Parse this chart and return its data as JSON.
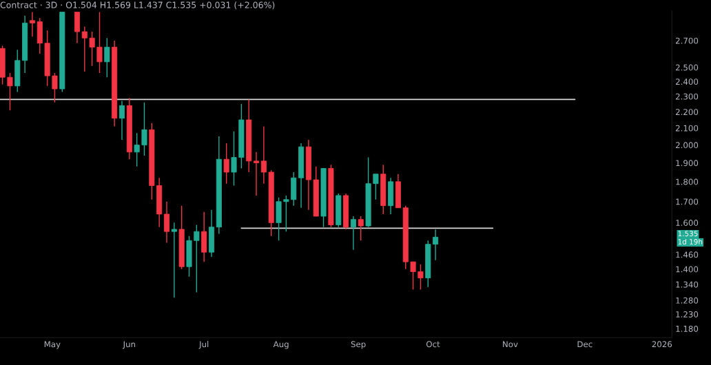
{
  "chart_data": {
    "type": "candlestick",
    "title": "Contract · 3D · O1.504 H1.569 L1.437 C1.535 +0.031 (+2.06%)",
    "x": [
      "2025-04-11",
      "2025-04-14",
      "2025-04-17",
      "2025-04-20",
      "2025-04-23",
      "2025-04-26",
      "2025-04-29",
      "2025-05-02",
      "2025-05-05",
      "2025-05-11",
      "2025-05-14",
      "2025-05-17",
      "2025-05-20",
      "2025-05-23",
      "2025-05-26",
      "2025-05-29",
      "2025-06-01",
      "2025-06-04",
      "2025-06-07",
      "2025-06-10",
      "2025-06-13",
      "2025-06-16",
      "2025-06-19",
      "2025-06-22",
      "2025-06-25",
      "2025-06-28",
      "2025-07-01",
      "2025-07-04",
      "2025-07-07",
      "2025-07-10",
      "2025-07-13",
      "2025-07-16",
      "2025-07-19",
      "2025-07-22",
      "2025-07-25",
      "2025-07-28",
      "2025-07-31",
      "2025-08-03",
      "2025-08-06",
      "2025-08-09",
      "2025-08-12",
      "2025-08-15",
      "2025-08-18",
      "2025-08-21",
      "2025-08-24",
      "2025-08-27",
      "2025-08-30",
      "2025-09-02",
      "2025-09-05",
      "2025-09-08",
      "2025-09-11",
      "2025-09-14",
      "2025-09-17",
      "2025-09-20",
      "2025-09-23",
      "2025-09-26",
      "2025-09-29",
      "2025-10-02"
    ],
    "ohlc": [
      [
        2.64,
        2.66,
        2.38,
        2.43
      ],
      [
        2.43,
        2.46,
        2.21,
        2.37
      ],
      [
        2.37,
        2.63,
        2.33,
        2.55
      ],
      [
        2.55,
        2.9,
        2.46,
        2.84
      ],
      [
        2.86,
        2.93,
        2.73,
        2.84
      ],
      [
        2.85,
        2.88,
        2.6,
        2.68
      ],
      [
        2.68,
        2.78,
        2.37,
        2.44
      ],
      [
        2.44,
        2.46,
        2.26,
        2.35
      ],
      [
        2.35,
        2.93,
        2.33,
        2.93
      ],
      [
        2.93,
        2.93,
        2.68,
        2.77
      ],
      [
        2.77,
        2.81,
        2.47,
        2.72
      ],
      [
        2.72,
        2.77,
        2.51,
        2.65
      ],
      [
        2.65,
        2.93,
        2.46,
        2.54
      ],
      [
        2.54,
        2.72,
        2.43,
        2.65
      ],
      [
        2.65,
        2.7,
        2.11,
        2.16
      ],
      [
        2.16,
        2.27,
        2.03,
        2.24
      ],
      [
        2.24,
        2.29,
        1.92,
        1.96
      ],
      [
        1.96,
        2.07,
        1.88,
        2.0
      ],
      [
        2.0,
        2.26,
        1.94,
        2.09
      ],
      [
        2.09,
        2.13,
        1.71,
        1.78
      ],
      [
        1.78,
        1.82,
        1.58,
        1.64
      ],
      [
        1.64,
        1.7,
        1.51,
        1.56
      ],
      [
        1.56,
        1.6,
        1.29,
        1.57
      ],
      [
        1.57,
        1.68,
        1.4,
        1.41
      ],
      [
        1.41,
        1.54,
        1.37,
        1.52
      ],
      [
        1.52,
        1.59,
        1.31,
        1.56
      ],
      [
        1.56,
        1.65,
        1.43,
        1.47
      ],
      [
        1.47,
        1.66,
        1.45,
        1.58
      ],
      [
        1.58,
        2.05,
        1.55,
        1.92
      ],
      [
        1.92,
        2.01,
        1.79,
        1.85
      ],
      [
        1.85,
        2.08,
        1.78,
        1.93
      ],
      [
        1.93,
        2.25,
        1.87,
        2.15
      ],
      [
        2.15,
        2.28,
        1.85,
        1.91
      ],
      [
        1.91,
        1.96,
        1.73,
        1.9
      ],
      [
        1.91,
        2.11,
        1.79,
        1.85
      ],
      [
        1.85,
        1.86,
        1.54,
        1.6
      ],
      [
        1.6,
        1.72,
        1.52,
        1.7
      ],
      [
        1.7,
        1.73,
        1.56,
        1.71
      ],
      [
        1.71,
        1.85,
        1.68,
        1.82
      ],
      [
        1.82,
        2.01,
        1.67,
        1.99
      ],
      [
        1.99,
        2.03,
        1.66,
        1.81
      ],
      [
        1.81,
        1.88,
        1.63,
        1.63
      ],
      [
        1.63,
        1.87,
        1.58,
        1.87
      ],
      [
        1.87,
        1.89,
        1.58,
        1.59
      ],
      [
        1.59,
        1.74,
        1.58,
        1.73
      ],
      [
        1.73,
        1.74,
        1.57,
        1.58
      ],
      [
        1.58,
        1.63,
        1.48,
        1.615
      ],
      [
        1.615,
        1.63,
        1.52,
        1.585
      ],
      [
        1.585,
        1.93,
        1.58,
        1.79
      ],
      [
        1.79,
        1.84,
        1.71,
        1.84
      ],
      [
        1.84,
        1.89,
        1.64,
        1.68
      ],
      [
        1.68,
        1.82,
        1.64,
        1.8
      ],
      [
        1.8,
        1.84,
        1.67,
        1.67
      ],
      [
        1.67,
        1.68,
        1.4,
        1.43
      ],
      [
        1.43,
        1.43,
        1.32,
        1.39
      ],
      [
        1.39,
        1.42,
        1.32,
        1.365
      ],
      [
        1.365,
        1.52,
        1.33,
        1.504
      ],
      [
        1.504,
        1.569,
        1.437,
        1.535
      ]
    ],
    "colors": [
      "#f23645",
      "#f23645",
      "#22ab94",
      "#22ab94",
      "#f23645",
      "#f23645",
      "#f23645",
      "#f23645",
      "#22ab94",
      "#f23645",
      "#f23645",
      "#f23645",
      "#f23645",
      "#22ab94",
      "#f23645",
      "#22ab94",
      "#f23645",
      "#22ab94",
      "#22ab94",
      "#f23645",
      "#f23645",
      "#f23645",
      "#22ab94",
      "#f23645",
      "#22ab94",
      "#22ab94",
      "#f23645",
      "#22ab94",
      "#22ab94",
      "#f23645",
      "#22ab94",
      "#22ab94",
      "#f23645",
      "#f23645",
      "#f23645",
      "#f23645",
      "#22ab94",
      "#22ab94",
      "#22ab94",
      "#22ab94",
      "#f23645",
      "#f23645",
      "#22ab94",
      "#f23645",
      "#22ab94",
      "#f23645",
      "#22ab94",
      "#f23645",
      "#22ab94",
      "#22ab94",
      "#f23645",
      "#22ab94",
      "#f23645",
      "#f23645",
      "#f23645",
      "#f23645",
      "#22ab94",
      "#22ab94"
    ],
    "series": [
      {
        "type": "line",
        "x": [
          "2025-04-10",
          "2025-11-27"
        ],
        "values": [
          2.28,
          2.28
        ],
        "color": "#d9d9d9"
      },
      {
        "type": "line",
        "x": [
          "2025-07-16",
          "2025-10-25"
        ],
        "values": [
          1.575,
          1.575
        ],
        "color": "#d9d9d9"
      }
    ],
    "log": true,
    "xlim": [
      "2025-04-10",
      "2026-01-05"
    ],
    "xticks": [
      {
        "value": "2025-05-01",
        "label": "May"
      },
      {
        "value": "2025-06-01",
        "label": "Jun"
      },
      {
        "value": "2025-07-01",
        "label": "Jul"
      },
      {
        "value": "2025-08-01",
        "label": "Aug"
      },
      {
        "value": "2025-09-01",
        "label": "Sep"
      },
      {
        "value": "2025-10-01",
        "label": "Oct"
      },
      {
        "value": "2025-11-01",
        "label": "Nov"
      },
      {
        "value": "2025-12-01",
        "label": "Dec"
      },
      {
        "value": "2026-01-01",
        "label": "2026"
      }
    ],
    "ylim": [
      1.15,
      2.94
    ],
    "yticks": [
      {
        "value": 1.18,
        "label": "1.180"
      },
      {
        "value": 1.23,
        "label": "1.230"
      },
      {
        "value": 1.28,
        "label": "1.280"
      },
      {
        "value": 1.34,
        "label": "1.340"
      },
      {
        "value": 1.4,
        "label": "1.400"
      },
      {
        "value": 1.46,
        "label": "1.460"
      },
      {
        "value": 1.6,
        "label": "1.600"
      },
      {
        "value": 1.7,
        "label": "1.700"
      },
      {
        "value": 1.8,
        "label": "1.800"
      },
      {
        "value": 1.9,
        "label": "1.900"
      },
      {
        "value": 2.0,
        "label": "2.000"
      },
      {
        "value": 2.1,
        "label": "2.100"
      },
      {
        "value": 2.2,
        "label": "2.200"
      },
      {
        "value": 2.3,
        "label": "2.300"
      },
      {
        "value": 2.4,
        "label": "2.400"
      },
      {
        "value": 2.5,
        "label": "2.500"
      },
      {
        "value": 2.7,
        "label": "2.700"
      }
    ],
    "annotations": [
      "1.535",
      "1d 19h"
    ]
  }
}
